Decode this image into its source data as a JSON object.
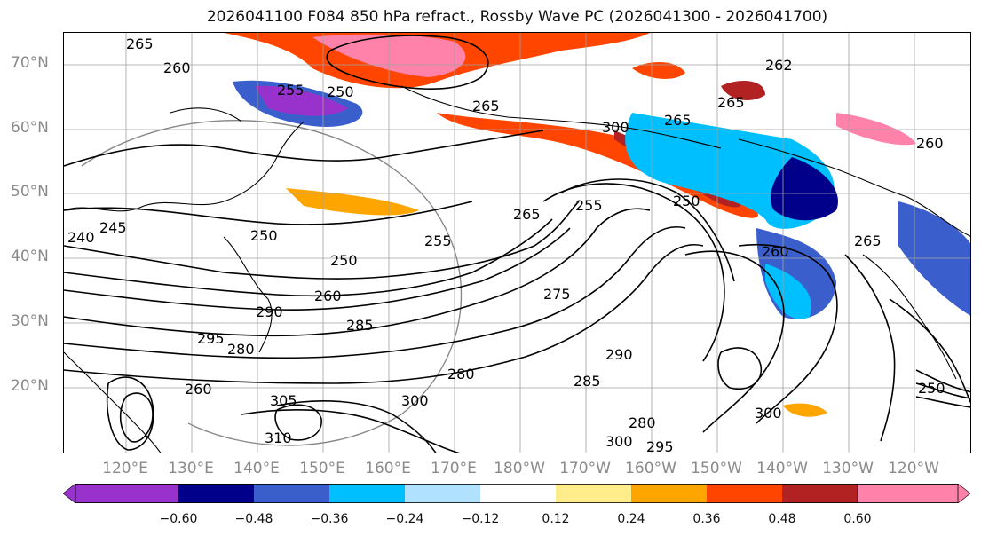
{
  "title": "2026041100 F084 850 hPa refract., Rossby Wave PC (2026041300 - 2026041700)",
  "lat_labels": [
    "70°N",
    "60°N",
    "50°N",
    "40°N",
    "30°N",
    "20°N"
  ],
  "lon_labels": [
    "120°E",
    "130°E",
    "140°E",
    "150°E",
    "160°E",
    "170°E",
    "180°W",
    "170°W",
    "160°W",
    "150°W",
    "140°W",
    "130°W",
    "120°W"
  ],
  "contour_labels": [
    "265",
    "260",
    "255",
    "250",
    "265",
    "300",
    "265",
    "262",
    "265",
    "260",
    "250",
    "255",
    "240",
    "245",
    "250",
    "255",
    "265",
    "250",
    "260",
    "275",
    "285",
    "290",
    "295",
    "300",
    "305",
    "310",
    "280",
    "260",
    "280",
    "285",
    "290",
    "280",
    "300",
    "300",
    "295",
    "250",
    "260",
    "265"
  ],
  "colorbar": {
    "colors": [
      "#9932cc",
      "#00008b",
      "#3a5fcd",
      "#00bfff",
      "#b0e2ff",
      "#ffffff",
      "#ffec8b",
      "#ffa500",
      "#ff4500",
      "#b22222",
      "#ff82ab"
    ],
    "tick_labels": [
      "−0.60",
      "−0.48",
      "−0.36",
      "−0.24",
      "−0.12",
      "0.12",
      "0.24",
      "0.36",
      "0.48",
      "0.60"
    ]
  }
}
